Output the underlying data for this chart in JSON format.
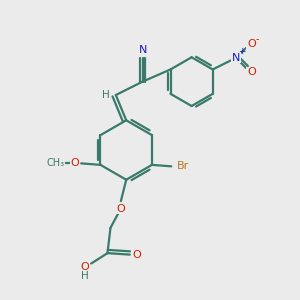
{
  "bg_color": "#ebebeb",
  "bond_color": "#3a7a6a",
  "bond_width": 1.6,
  "atom_colors": {
    "C": "#3a7a6a",
    "N": "#1a1acc",
    "O": "#cc2200",
    "Br": "#b87820",
    "H": "#3a7a6a"
  }
}
